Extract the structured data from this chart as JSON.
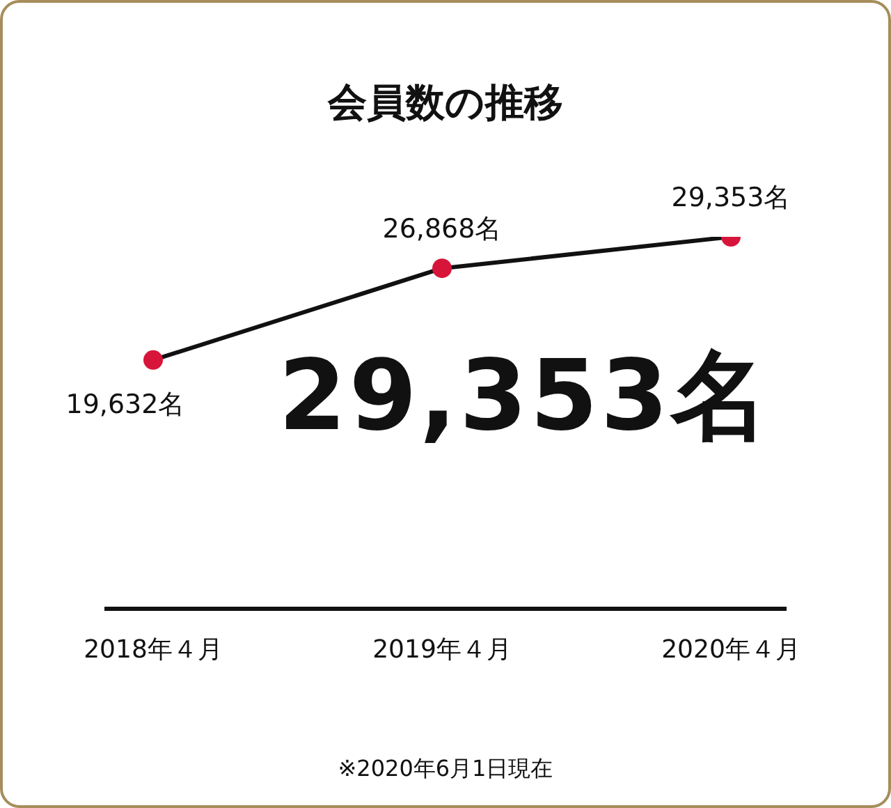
{
  "chart_data": {
    "type": "line",
    "title": "会員数の推移",
    "categories": [
      "2018年４月",
      "2019年４月",
      "2020年４月"
    ],
    "series": [
      {
        "color": "#111111",
        "colors": [
          "#d7153a",
          "#d7153a",
          "#d7153a"
        ],
        "values": [
          19632,
          26868,
          29353
        ],
        "value_labels": [
          "19,632名",
          "26,868名",
          "29,353名"
        ]
      }
    ],
    "marker": "circle",
    "grid": false,
    "legend": false,
    "annotations": [
      "29,353名",
      "※2020年6月1日現在"
    ]
  }
}
